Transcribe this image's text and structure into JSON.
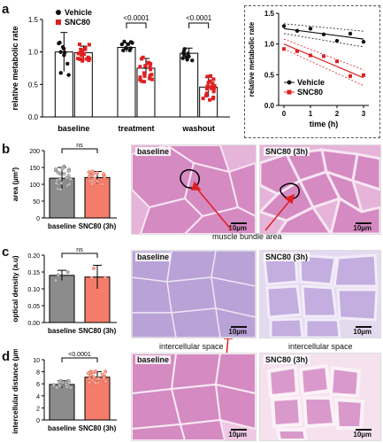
{
  "panels": {
    "a": {
      "letter": "a"
    },
    "b": {
      "letter": "b"
    },
    "c": {
      "letter": "c"
    },
    "d": {
      "letter": "d"
    }
  },
  "colors": {
    "vehicle": "#111111",
    "snc80": "#e02020",
    "snc80_bar": "#f47c6a",
    "tissue": "#d58ac2",
    "tissue_blue": "#c2a9dd"
  },
  "annotations": {
    "muscle_bundle": "muscle bundle area",
    "intercellular_1": "intercellular space",
    "intercellular_2": "intercellular space"
  },
  "micrographs": [
    {
      "label": "baseline",
      "scale": "10µm"
    },
    {
      "label": "SNC80 (3h)",
      "scale": "10µm"
    },
    {
      "label": "baseline",
      "scale": "10µm"
    },
    {
      "label": "SNC80 (3h)",
      "scale": "10µm"
    },
    {
      "label": "baseline",
      "scale": "10µm"
    },
    {
      "label": "SNC80 (3h)",
      "scale": "10µm"
    }
  ],
  "chart_data": [
    {
      "id": "a_bar",
      "type": "bar",
      "ylabel": "relative metabolic rate",
      "ylim": [
        0,
        1.5
      ],
      "yticks": [
        "0.0",
        "0.5",
        "1.0",
        "1.5"
      ],
      "categories": [
        "baseline",
        "treatment",
        "washout"
      ],
      "legend": [
        "Vehicle",
        "SNC80"
      ],
      "series": [
        {
          "name": "Vehicle",
          "values": [
            1.0,
            1.07,
            0.98
          ],
          "err": [
            0.3,
            0.07,
            0.08
          ]
        },
        {
          "name": "SNC80",
          "values": [
            0.99,
            0.75,
            0.46
          ],
          "err": [
            0.1,
            0.15,
            0.15
          ]
        }
      ],
      "significance": [
        "<0.0001",
        "<0.0001"
      ]
    },
    {
      "id": "a_inset",
      "type": "scatter",
      "xlabel": "time (h)",
      "ylabel": "relative metabolic rate",
      "xlim": [
        -0.2,
        3.2
      ],
      "ylim": [
        0.0,
        1.5
      ],
      "xticks": [
        "0",
        "1",
        "2",
        "3"
      ],
      "yticks": [
        "0.0",
        "0.5",
        "1.0",
        "1.5"
      ],
      "legend": [
        "Vehicle",
        "SNC80"
      ],
      "series": [
        {
          "name": "Vehicle",
          "x": [
            0,
            0.5,
            1,
            1.5,
            2,
            2.5,
            3
          ],
          "y": [
            1.25,
            1.2,
            1.18,
            1.15,
            1.12,
            1.1,
            1.08
          ]
        },
        {
          "name": "SNC80",
          "x": [
            0,
            0.5,
            1,
            1.5,
            2,
            2.5,
            3
          ],
          "y": [
            1.0,
            0.9,
            0.85,
            0.75,
            0.65,
            0.55,
            0.45
          ]
        }
      ]
    },
    {
      "id": "b_bar",
      "type": "bar",
      "ylabel": "area (µm²)",
      "ylim": [
        0,
        200
      ],
      "yticks": [
        "0",
        "50",
        "100",
        "150",
        "200"
      ],
      "categories": [
        "baseline",
        "SNC80 (3h)"
      ],
      "values": [
        118,
        120
      ],
      "err": [
        32,
        18
      ],
      "significance": [
        "ns"
      ]
    },
    {
      "id": "c_bar",
      "type": "bar",
      "ylabel": "optical density (a.u)",
      "ylim": [
        0,
        0.2
      ],
      "yticks": [
        "0.00",
        "0.05",
        "0.10",
        "0.15",
        "0.20"
      ],
      "categories": [
        "baseline",
        "SNC80 (3h)"
      ],
      "values": [
        0.14,
        0.135
      ],
      "err": [
        0.015,
        0.035
      ],
      "significance": [
        "ns"
      ]
    },
    {
      "id": "d_bar",
      "type": "bar",
      "ylabel": "intercellular distance (µm)",
      "ylim": [
        0,
        10
      ],
      "yticks": [
        "0",
        "2",
        "4",
        "6",
        "8",
        "10"
      ],
      "categories": [
        "baseline",
        "SNC80 (3h)"
      ],
      "values": [
        5.9,
        7.1
      ],
      "err": [
        0.6,
        0.9
      ],
      "significance": [
        "<0.0001"
      ]
    }
  ]
}
